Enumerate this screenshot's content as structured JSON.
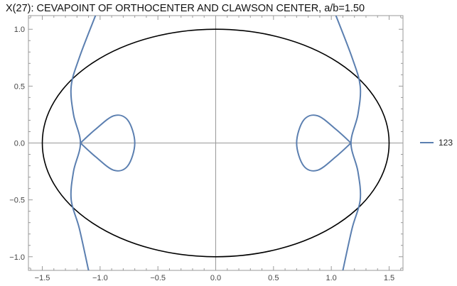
{
  "chart_data": {
    "type": "line",
    "title": "X(27): CEVAPOINT OF ORTHOCENTER AND CLAWSON CENTER, a/b=1.50",
    "xlabel": "",
    "ylabel": "",
    "xlim": [
      -1.62,
      1.62
    ],
    "ylim": [
      -1.12,
      1.12
    ],
    "x_ticks": [
      -1.5,
      -1.0,
      -0.5,
      0.0,
      0.5,
      1.0,
      1.5
    ],
    "x_tick_labels": [
      "−1.5",
      "−1.0",
      "−0.5",
      "0.0",
      "0.5",
      "1.0",
      "1.5"
    ],
    "y_ticks": [
      1.0,
      0.5,
      0.0,
      -0.5,
      -1.0
    ],
    "y_tick_labels": [
      "1.0",
      "0.5",
      "0.0",
      "−0.5",
      "−1.0"
    ],
    "grid": false,
    "axes_through_origin": true,
    "legend": {
      "position": "right",
      "entries": [
        "123"
      ]
    },
    "series": [
      {
        "name": "",
        "kind": "ellipse",
        "color": "#000000",
        "semi_axis_x": 1.5,
        "semi_axis_y": 1.0
      },
      {
        "name": "123",
        "kind": "curve",
        "color": "#5b7fb0",
        "branches": [
          {
            "part": "right-outer-branch",
            "points": [
              [
                1.04,
                1.12
              ],
              [
                1.18,
                0.75
              ],
              [
                1.25,
                0.5
              ],
              [
                1.23,
                0.25
              ],
              [
                1.17,
                0.0
              ],
              [
                1.23,
                -0.25
              ],
              [
                1.25,
                -0.5
              ],
              [
                1.18,
                -0.75
              ],
              [
                1.1,
                -1.12
              ]
            ]
          },
          {
            "part": "left-outer-branch",
            "points": [
              [
                -1.04,
                1.12
              ],
              [
                -1.18,
                0.75
              ],
              [
                -1.25,
                0.5
              ],
              [
                -1.23,
                0.25
              ],
              [
                -1.17,
                0.0
              ],
              [
                -1.23,
                -0.25
              ],
              [
                -1.25,
                -0.5
              ],
              [
                -1.18,
                -0.75
              ],
              [
                -1.1,
                -1.12
              ]
            ]
          },
          {
            "part": "right-loop",
            "points": [
              [
                1.17,
                0.0
              ],
              [
                1.04,
                0.12
              ],
              [
                0.88,
                0.24
              ],
              [
                0.76,
                0.2
              ],
              [
                0.7,
                0.0
              ],
              [
                0.76,
                -0.2
              ],
              [
                0.88,
                -0.24
              ],
              [
                1.04,
                -0.12
              ],
              [
                1.17,
                0.0
              ]
            ]
          },
          {
            "part": "left-loop",
            "points": [
              [
                -1.17,
                0.0
              ],
              [
                -1.04,
                0.12
              ],
              [
                -0.88,
                0.24
              ],
              [
                -0.76,
                0.2
              ],
              [
                -0.7,
                0.0
              ],
              [
                -0.76,
                -0.2
              ],
              [
                -0.88,
                -0.24
              ],
              [
                -1.04,
                -0.12
              ],
              [
                -1.17,
                0.0
              ]
            ]
          }
        ]
      }
    ]
  }
}
